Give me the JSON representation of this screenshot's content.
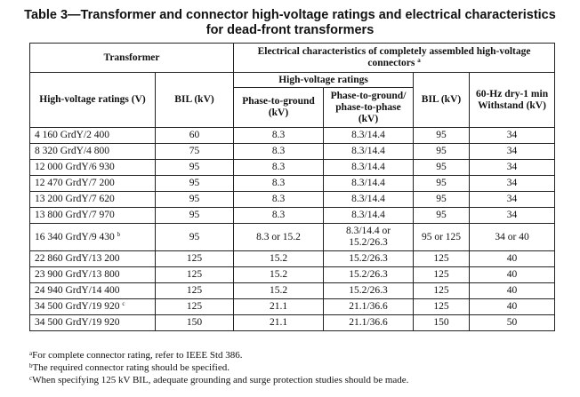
{
  "title": {
    "line1": "Table 3—Transformer and connector high-voltage ratings and electrical characteristics",
    "line2": "for dead-front transformers"
  },
  "headers": {
    "transformer": "Transformer",
    "connectors": "Electrical characteristics of completely assembled high-voltage connectors",
    "connectors_note": "a",
    "hv_ratings": "High-voltage ratings (V)",
    "bil_kv": "BIL (kV)",
    "hv_ratings_group": "High-voltage ratings",
    "phase_to_ground": "Phase-to-ground (kV)",
    "phase_to_ground_phase": "Phase-to-ground/ phase-to-phase (kV)",
    "conn_bil": "BIL (kV)",
    "withstand": "60-Hz dry-1 min Withstand (kV)"
  },
  "rows": [
    {
      "hv": "4 160 GrdY/2 400",
      "note": "",
      "bil": "60",
      "pg": "8.3",
      "pgpp": "8.3/14.4",
      "cbil": "95",
      "ws": "34"
    },
    {
      "hv": "8 320 GrdY/4 800",
      "note": "",
      "bil": "75",
      "pg": "8.3",
      "pgpp": "8.3/14.4",
      "cbil": "95",
      "ws": "34"
    },
    {
      "hv": "12 000 GrdY/6 930",
      "note": "",
      "bil": "95",
      "pg": "8.3",
      "pgpp": "8.3/14.4",
      "cbil": "95",
      "ws": "34"
    },
    {
      "hv": "12 470 GrdY/7 200",
      "note": "",
      "bil": "95",
      "pg": "8.3",
      "pgpp": "8.3/14.4",
      "cbil": "95",
      "ws": "34"
    },
    {
      "hv": "13 200 GrdY/7 620",
      "note": "",
      "bil": "95",
      "pg": "8.3",
      "pgpp": "8.3/14.4",
      "cbil": "95",
      "ws": "34"
    },
    {
      "hv": "13 800 GrdY/7 970",
      "note": "",
      "bil": "95",
      "pg": "8.3",
      "pgpp": "8.3/14.4",
      "cbil": "95",
      "ws": "34"
    },
    {
      "hv": "16 340 GrdY/9 430",
      "note": "b",
      "bil": "95",
      "pg": "8.3 or 15.2",
      "pgpp": "8.3/14.4 or 15.2/26.3",
      "cbil": "95 or 125",
      "ws": "34 or 40"
    },
    {
      "hv": "22 860 GrdY/13 200",
      "note": "",
      "bil": "125",
      "pg": "15.2",
      "pgpp": "15.2/26.3",
      "cbil": "125",
      "ws": "40"
    },
    {
      "hv": "23 900 GrdY/13 800",
      "note": "",
      "bil": "125",
      "pg": "15.2",
      "pgpp": "15.2/26.3",
      "cbil": "125",
      "ws": "40"
    },
    {
      "hv": "24 940 GrdY/14 400",
      "note": "",
      "bil": "125",
      "pg": "15.2",
      "pgpp": "15.2/26.3",
      "cbil": "125",
      "ws": "40"
    },
    {
      "hv": "34 500 GrdY/19 920",
      "note": "c",
      "bil": "125",
      "pg": "21.1",
      "pgpp": "21.1/36.6",
      "cbil": "125",
      "ws": "40"
    },
    {
      "hv": "34 500 GrdY/19 920",
      "note": "",
      "bil": "150",
      "pg": "21.1",
      "pgpp": "21.1/36.6",
      "cbil": "150",
      "ws": "50"
    }
  ],
  "footnotes": [
    {
      "mark": "a",
      "text": "For complete connector rating, refer to IEEE Std 386."
    },
    {
      "mark": "b",
      "text": "The required connector rating should be specified."
    },
    {
      "mark": "c",
      "text": "When specifying 125 kV BIL, adequate grounding and surge protection studies should be made."
    }
  ]
}
